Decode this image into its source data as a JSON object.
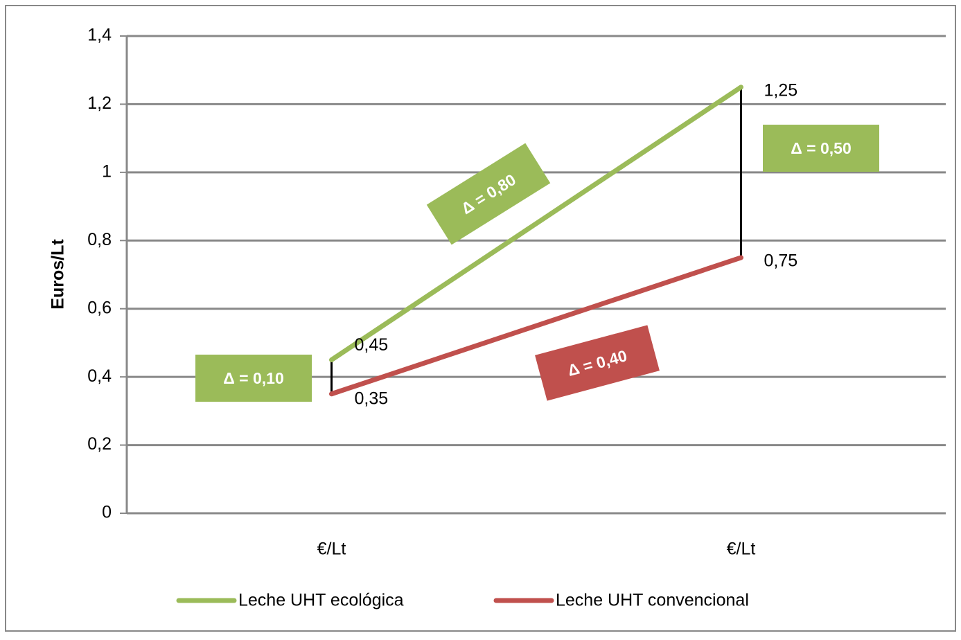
{
  "chart_data": {
    "type": "line",
    "ylabel": "Euros/Lt",
    "categories": [
      "€/Lt",
      "€/Lt"
    ],
    "series": [
      {
        "name": "Leche UHT ecológica",
        "color": "#9bbb59",
        "values": [
          0.45,
          1.25
        ],
        "value_labels": [
          "0,45",
          "1,25"
        ]
      },
      {
        "name": "Leche UHT convencional",
        "color": "#c0504d",
        "values": [
          0.35,
          0.75
        ],
        "value_labels": [
          "0,35",
          "0,75"
        ]
      }
    ],
    "ylim": [
      0,
      1.4
    ],
    "yticks": [
      0,
      {
        "value": 0.2,
        "label": "0,2"
      },
      {
        "value": 0.4,
        "label": "0,4"
      },
      {
        "value": 0.6,
        "label": "0,6"
      },
      {
        "value": 0.8,
        "label": "0,8"
      },
      1,
      {
        "value": 1.2,
        "label": "1,2"
      },
      {
        "value": 1.4,
        "label": "1,4"
      }
    ],
    "grid": true,
    "legend": "bottom",
    "annotations": [
      {
        "text": "Δ = 0,10",
        "color": "#9bbb59"
      },
      {
        "text": "Δ = 0,80",
        "color": "#9bbb59"
      },
      {
        "text": "Δ = 0,50",
        "color": "#9bbb59"
      },
      {
        "text": "Δ = 0,40",
        "color": "#c0504d"
      }
    ]
  }
}
